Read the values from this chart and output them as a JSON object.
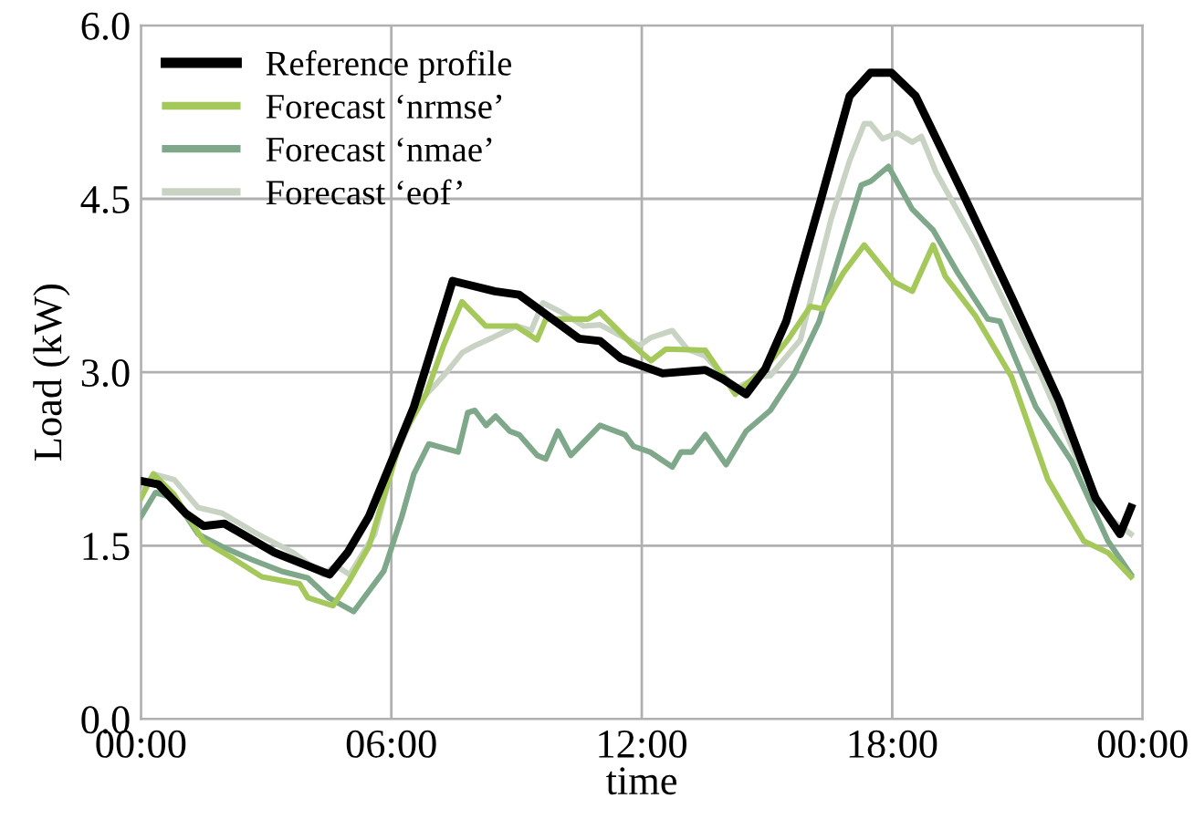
{
  "chart_data": {
    "type": "line",
    "xlabel": "time",
    "ylabel": "Load (kW)",
    "xlim": [
      0,
      24
    ],
    "xticks": [
      {
        "value": 0,
        "label": "00:00"
      },
      {
        "value": 6,
        "label": "06:00"
      },
      {
        "value": 12,
        "label": "12:00"
      },
      {
        "value": 18,
        "label": "18:00"
      },
      {
        "value": 24,
        "label": "00:00"
      }
    ],
    "ylim": [
      0,
      6
    ],
    "yticks": [
      {
        "value": 0,
        "label": "0.0"
      },
      1.5,
      {
        "value": 3,
        "label": "3.0"
      },
      4.5,
      {
        "value": 6,
        "label": "6.0"
      }
    ],
    "grid": true,
    "legend": "top left",
    "marker": "none",
    "line_style": "solid",
    "series": [
      {
        "name": "Reference profile",
        "color": "#000000",
        "x": [
          0,
          0.42,
          1.07,
          1.5,
          2.0,
          3.2,
          4.52,
          4.95,
          5.46,
          6.54,
          7.47,
          8.48,
          9.06,
          10.5,
          11.0,
          11.5,
          12.5,
          13.52,
          13.95,
          14.5,
          14.96,
          15.46,
          16.25,
          16.98,
          17.48,
          17.98,
          18.56,
          19.7,
          20.86,
          22.0,
          22.87,
          23.46,
          23.72
        ],
        "values": [
          2.06,
          2.03,
          1.78,
          1.67,
          1.69,
          1.44,
          1.25,
          1.44,
          1.75,
          2.7,
          3.79,
          3.7,
          3.67,
          3.29,
          3.27,
          3.12,
          2.99,
          3.02,
          2.94,
          2.81,
          3.03,
          3.44,
          4.44,
          5.39,
          5.59,
          5.59,
          5.39,
          4.54,
          3.65,
          2.75,
          1.91,
          1.6,
          1.83
        ]
      },
      {
        "name": "Forecast ‘nrmse’",
        "color": "#a5c85a",
        "x": [
          0,
          0.3,
          0.8,
          1.5,
          2.2,
          2.9,
          3.8,
          4.0,
          4.6,
          5.0,
          5.46,
          6.25,
          6.83,
          7.25,
          7.69,
          8.26,
          8.98,
          9.49,
          9.7,
          10.71,
          11.0,
          11.8,
          12.22,
          12.58,
          13.52,
          14.24,
          14.96,
          15.5,
          16.04,
          16.33,
          16.83,
          17.33,
          18.05,
          18.48,
          18.98,
          19.27,
          19.99,
          20.86,
          21.73,
          22.59,
          23.17,
          23.72
        ],
        "values": [
          1.91,
          2.12,
          1.94,
          1.54,
          1.39,
          1.23,
          1.17,
          1.05,
          0.98,
          1.2,
          1.49,
          2.44,
          2.81,
          3.23,
          3.61,
          3.4,
          3.4,
          3.28,
          3.46,
          3.46,
          3.52,
          3.23,
          3.1,
          3.2,
          3.19,
          2.81,
          3.04,
          3.28,
          3.57,
          3.55,
          3.86,
          4.1,
          3.78,
          3.7,
          4.1,
          3.83,
          3.49,
          2.96,
          2.07,
          1.54,
          1.44,
          1.23
        ]
      },
      {
        "name": "Forecast ‘nmae’",
        "color": "#7fa88a",
        "x": [
          0,
          0.35,
          0.8,
          1.37,
          1.95,
          2.65,
          3.36,
          4.0,
          4.5,
          5.1,
          5.82,
          6.25,
          6.54,
          6.9,
          7.6,
          7.83,
          8.0,
          8.27,
          8.5,
          8.84,
          9.06,
          9.5,
          9.7,
          9.99,
          10.3,
          11.0,
          11.6,
          11.8,
          12.2,
          12.73,
          12.94,
          13.2,
          13.52,
          14.02,
          14.5,
          15.08,
          15.66,
          16.25,
          16.83,
          17.26,
          17.48,
          17.91,
          18.48,
          18.98,
          19.57,
          20.29,
          20.58,
          21.44,
          22.3,
          23.17,
          23.72
        ],
        "values": [
          1.75,
          1.96,
          1.91,
          1.6,
          1.49,
          1.38,
          1.28,
          1.22,
          1.05,
          0.93,
          1.28,
          1.75,
          2.12,
          2.38,
          2.31,
          2.65,
          2.67,
          2.54,
          2.62,
          2.49,
          2.46,
          2.28,
          2.25,
          2.49,
          2.28,
          2.54,
          2.46,
          2.36,
          2.31,
          2.18,
          2.31,
          2.31,
          2.46,
          2.2,
          2.49,
          2.67,
          2.99,
          3.44,
          4.12,
          4.62,
          4.65,
          4.78,
          4.41,
          4.23,
          3.86,
          3.46,
          3.44,
          2.7,
          2.23,
          1.54,
          1.25
        ]
      },
      {
        "name": "Forecast ‘eof’",
        "color": "#c9d3c3",
        "x": [
          0,
          0.3,
          0.8,
          1.37,
          1.95,
          2.8,
          3.65,
          4.37,
          4.66,
          5.0,
          5.6,
          6.1,
          6.68,
          7.1,
          7.3,
          7.7,
          8.0,
          8.43,
          9.0,
          9.35,
          9.63,
          10.07,
          10.6,
          11.0,
          11.94,
          12.22,
          12.73,
          13.09,
          13.52,
          14.24,
          14.81,
          15.08,
          15.8,
          16.54,
          16.98,
          17.33,
          17.48,
          17.77,
          18.12,
          18.48,
          18.7,
          19.05,
          19.99,
          20.86,
          21.58,
          22.45,
          23.17,
          23.72
        ],
        "values": [
          1.94,
          2.12,
          2.07,
          1.83,
          1.78,
          1.6,
          1.44,
          1.25,
          1.33,
          1.25,
          1.6,
          2.28,
          2.75,
          2.91,
          2.99,
          3.17,
          3.23,
          3.3,
          3.4,
          3.36,
          3.6,
          3.52,
          3.4,
          3.41,
          3.23,
          3.3,
          3.36,
          3.2,
          3.14,
          2.86,
          2.96,
          2.97,
          3.28,
          4.33,
          4.83,
          5.15,
          5.15,
          5.02,
          5.07,
          4.99,
          5.04,
          4.73,
          4.12,
          3.48,
          2.96,
          2.23,
          1.75,
          1.6
        ]
      }
    ]
  }
}
